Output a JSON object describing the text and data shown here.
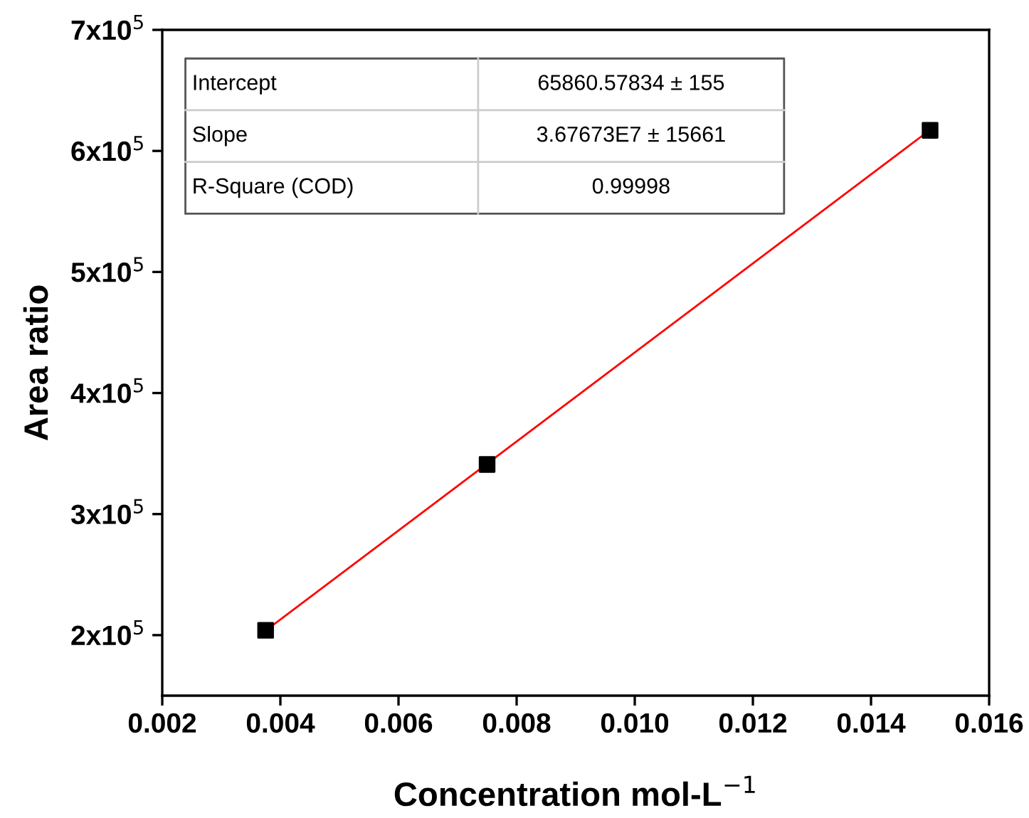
{
  "chart_data": {
    "type": "scatter",
    "xlabel": "Concentration mol-L$^{−1}$",
    "ylabel": "Area ratio",
    "x": [
      0.00375,
      0.0075,
      0.015
    ],
    "series": [
      {
        "color": "#000000",
        "marker": "square",
        "values": [
          204000,
          341000,
          617000
        ]
      },
      {
        "type": "line",
        "color": "#ff0000",
        "marker": "none",
        "line_style": "solid",
        "x": [
          0.00375,
          0.015
        ],
        "values": [
          203700,
          617400
        ]
      }
    ],
    "xlim": [
      0.002,
      0.016
    ],
    "xticks": [
      {
        "value": 0.002,
        "label": "0.002"
      },
      {
        "value": 0.004,
        "label": "0.004"
      },
      {
        "value": 0.006,
        "label": "0.006"
      },
      {
        "value": 0.008,
        "label": "0.008"
      },
      {
        "value": 0.01,
        "label": "0.010"
      },
      {
        "value": 0.012,
        "label": "0.012"
      },
      {
        "value": 0.014,
        "label": "0.014"
      },
      {
        "value": 0.016,
        "label": "0.016"
      }
    ],
    "ylim": [
      150000,
      700000
    ],
    "yticks": [
      {
        "value": 200000,
        "label": "2x10$^{5}$"
      },
      {
        "value": 300000,
        "label": "3x10$^{5}$"
      },
      {
        "value": 400000,
        "label": "4x10$^{5}$"
      },
      {
        "value": 500000,
        "label": "5x10$^{5}$"
      },
      {
        "value": 600000,
        "label": "6x10$^{5}$"
      },
      {
        "value": 700000,
        "label": "7x10$^{5}$"
      }
    ],
    "annotations": [
      "Intercept",
      "65860.57834 ± 155",
      "Slope",
      "3.67673E7 ± 15661",
      "R-Square (COD)",
      "0.99998"
    ],
    "grid": false,
    "legend": false
  }
}
